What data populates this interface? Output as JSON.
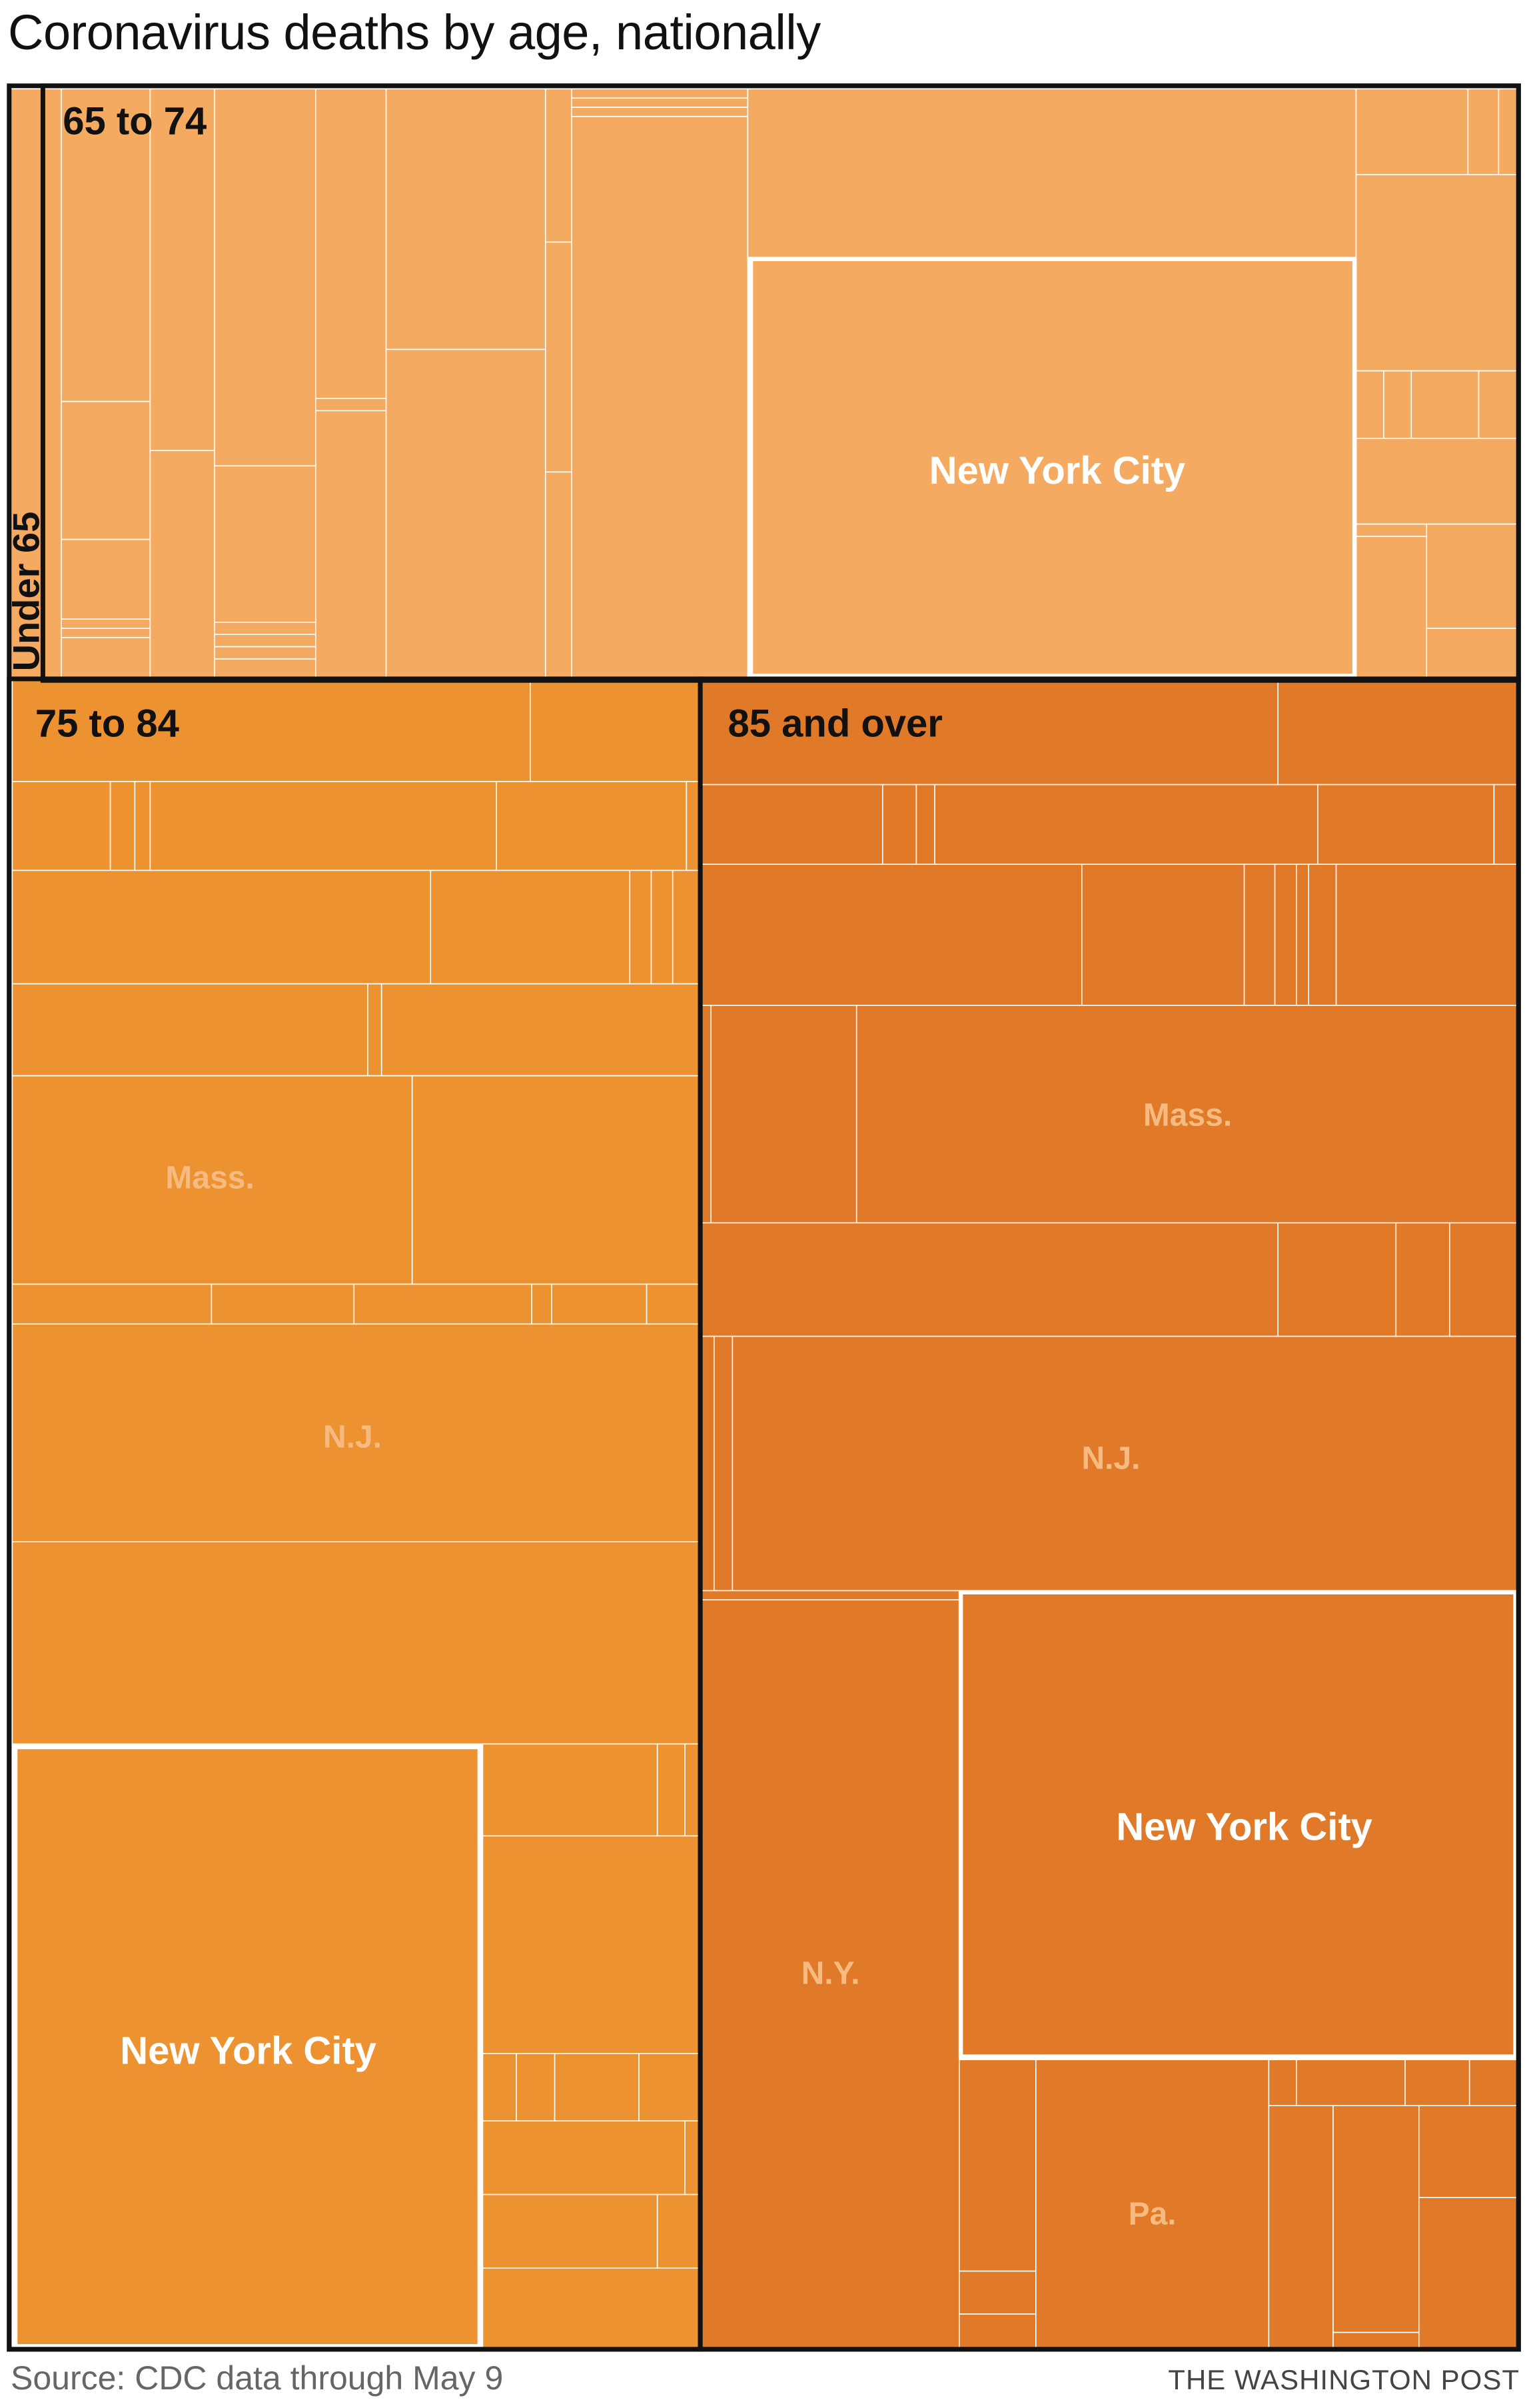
{
  "chart_data": {
    "type": "treemap",
    "title": "Coronavirus deaths by age, nationally",
    "source": "Source: CDC data through May 9",
    "credit": "THE WASHINGTON POST",
    "groups": [
      {
        "name": "Under 65",
        "color": "#f5aa62",
        "highlighted_labels": [],
        "labeled_states": []
      },
      {
        "name": "65 to 74",
        "color": "#f5aa62",
        "highlighted_labels": [
          "New York City"
        ],
        "labeled_states": []
      },
      {
        "name": "75 to 84",
        "color": "#ed9230",
        "highlighted_labels": [
          "New York City"
        ],
        "labeled_states": [
          "Mass.",
          "N.J."
        ]
      },
      {
        "name": "85 and over",
        "color": "#e07a28",
        "highlighted_labels": [
          "New York City"
        ],
        "labeled_states": [
          "Mass.",
          "N.J.",
          "N.Y.",
          "Pa."
        ]
      }
    ],
    "colors": {
      "under65": "#f5aa62",
      "age65to74": "#f5aa62",
      "age75to84": "#ed9230",
      "age85plus": "#e07a28",
      "group_border": "#111111",
      "cell_border": "#ffffff",
      "highlight_label": "#ffffff",
      "state_label": "#f7bb82"
    }
  }
}
